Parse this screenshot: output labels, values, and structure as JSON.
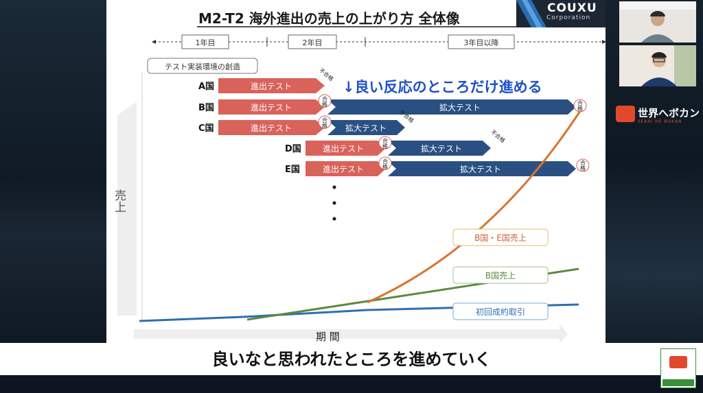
{
  "slide": {
    "title": "M2-T2 海外進出の売上の上がり方 全体像",
    "periods": [
      "1年目",
      "2年目",
      "3年目以降"
    ],
    "env_label": "テスト実装環境の創造",
    "headline": "↓良い反応のところだけ進める",
    "y_axis": "売上",
    "x_axis": "期 間",
    "countries": [
      "A国",
      "B国",
      "C国",
      "D国",
      "E国"
    ],
    "entry_test": "進出テスト",
    "expand_test": "拡大テスト",
    "fail": "不合格",
    "pass": "合格",
    "legend": [
      "B国・E国売上",
      "B国売上",
      "初回成約取引"
    ]
  },
  "colors": {
    "entry": "#d9625a",
    "expand": "#2a5083",
    "orange": "#d9742f",
    "green": "#5b8a3f",
    "blue": "#2e6fae",
    "headline": "#1d50c7"
  },
  "brand": {
    "logo_top": "COUXU",
    "logo_bottom": "Corporation",
    "channel": "世界へボカン",
    "channel_sub": "SEKAI HE BOKAN"
  },
  "subtitle": "良いなと思われたところを進めていく"
}
